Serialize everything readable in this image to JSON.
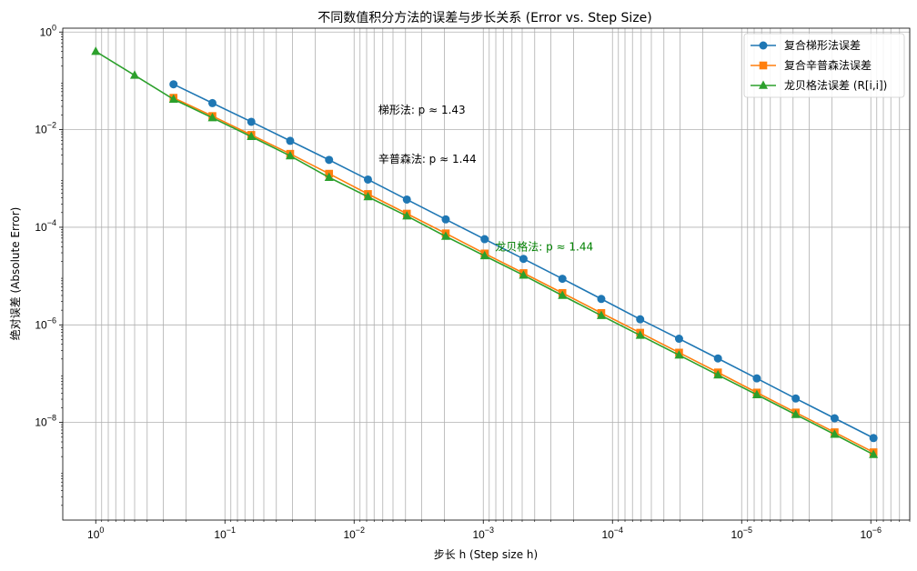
{
  "chart_data": {
    "type": "line",
    "title": "不同数值积分方法的误差与步长关系 (Error vs. Step Size)",
    "xlabel": "步长 h (Step size h)",
    "ylabel": "绝对误差 (Absolute Error)",
    "x_scale": "log",
    "y_scale": "log",
    "x_reversed": true,
    "xlim": [
      1.8,
      5e-07
    ],
    "ylim": [
      1e-10,
      1.2
    ],
    "x_ticks": [
      {
        "value": 1,
        "base": "10",
        "exp": "0"
      },
      {
        "value": 0.1,
        "base": "10",
        "exp": "−1"
      },
      {
        "value": 0.01,
        "base": "10",
        "exp": "−2"
      },
      {
        "value": 0.001,
        "base": "10",
        "exp": "−3"
      },
      {
        "value": 0.0001,
        "base": "10",
        "exp": "−4"
      },
      {
        "value": 1e-05,
        "base": "10",
        "exp": "−5"
      },
      {
        "value": 1e-06,
        "base": "10",
        "exp": "−6"
      }
    ],
    "y_ticks": [
      {
        "value": 1,
        "base": "10",
        "exp": "0"
      },
      {
        "value": 0.01,
        "base": "10",
        "exp": "−2"
      },
      {
        "value": 0.0001,
        "base": "10",
        "exp": "−4"
      },
      {
        "value": 1e-06,
        "base": "10",
        "exp": "−6"
      },
      {
        "value": 1e-08,
        "base": "10",
        "exp": "−8"
      }
    ],
    "grid": true,
    "legend_position": "top-right",
    "series": [
      {
        "name": "复合梯形法误差",
        "color": "#1f77b4",
        "marker": "circle",
        "x": [
          0.25,
          0.125,
          0.0625,
          0.03125,
          0.015625,
          0.0078125,
          0.00390625,
          0.001953125,
          0.0009765625,
          0.00048828125,
          0.000244140625,
          0.0001220703125,
          6.103515625e-05,
          3.0517578125e-05,
          1.52587890625e-05,
          7.62939453125e-06,
          3.814697265625e-06,
          1.9073486328125e-06,
          9.5367431640625e-07
        ],
        "y": [
          0.085,
          0.035,
          0.0145,
          0.0059,
          0.0024,
          0.00095,
          0.00037,
          0.000145,
          5.7e-05,
          2.25e-05,
          8.8e-06,
          3.4e-06,
          1.3e-06,
          5.2e-07,
          2.05e-07,
          8e-08,
          3.1e-08,
          1.22e-08,
          4.8e-09
        ]
      },
      {
        "name": "复合辛普森法误差",
        "color": "#ff7f0e",
        "marker": "square",
        "x": [
          0.25,
          0.125,
          0.0625,
          0.03125,
          0.015625,
          0.0078125,
          0.00390625,
          0.001953125,
          0.0009765625,
          0.00048828125,
          0.000244140625,
          0.0001220703125,
          6.103515625e-05,
          3.0517578125e-05,
          1.52587890625e-05,
          7.62939453125e-06,
          3.814697265625e-06,
          1.9073486328125e-06,
          9.5367431640625e-07
        ],
        "y": [
          0.045,
          0.019,
          0.0078,
          0.0032,
          0.00125,
          0.00048,
          0.00019,
          7.5e-05,
          2.9e-05,
          1.15e-05,
          4.5e-06,
          1.75e-06,
          6.9e-07,
          2.7e-07,
          1.06e-07,
          4.1e-08,
          1.6e-08,
          6.3e-09,
          2.45e-09
        ]
      },
      {
        "name": "龙贝格法误差 (R[i,i])",
        "color": "#2ca02c",
        "marker": "triangle",
        "x": [
          1,
          0.5,
          0.25,
          0.125,
          0.0625,
          0.03125,
          0.015625,
          0.0078125,
          0.00390625,
          0.001953125,
          0.0009765625,
          0.00048828125,
          0.000244140625,
          0.0001220703125,
          6.103515625e-05,
          3.0517578125e-05,
          1.52587890625e-05,
          7.62939453125e-06,
          3.814697265625e-06,
          1.9073486328125e-06,
          9.5367431640625e-07
        ],
        "y": [
          0.4,
          0.13,
          0.042,
          0.0175,
          0.0072,
          0.0029,
          0.00105,
          0.00042,
          0.00017,
          6.5e-05,
          2.6e-05,
          1.04e-05,
          4e-06,
          1.55e-06,
          6.1e-07,
          2.4e-07,
          9.4e-08,
          3.7e-08,
          1.45e-08,
          5.7e-09,
          2.2e-09
        ]
      }
    ],
    "annotations": [
      {
        "text": "梯形法: p ≈ 1.43",
        "x": 0.0065,
        "y": 0.025,
        "color": "#000000"
      },
      {
        "text": "辛普森法: p ≈ 1.44",
        "x": 0.0065,
        "y": 0.0025,
        "color": "#000000"
      },
      {
        "text": "龙贝格法: p ≈ 1.44",
        "x": 0.00081,
        "y": 4e-05,
        "color": "#008000"
      }
    ]
  }
}
